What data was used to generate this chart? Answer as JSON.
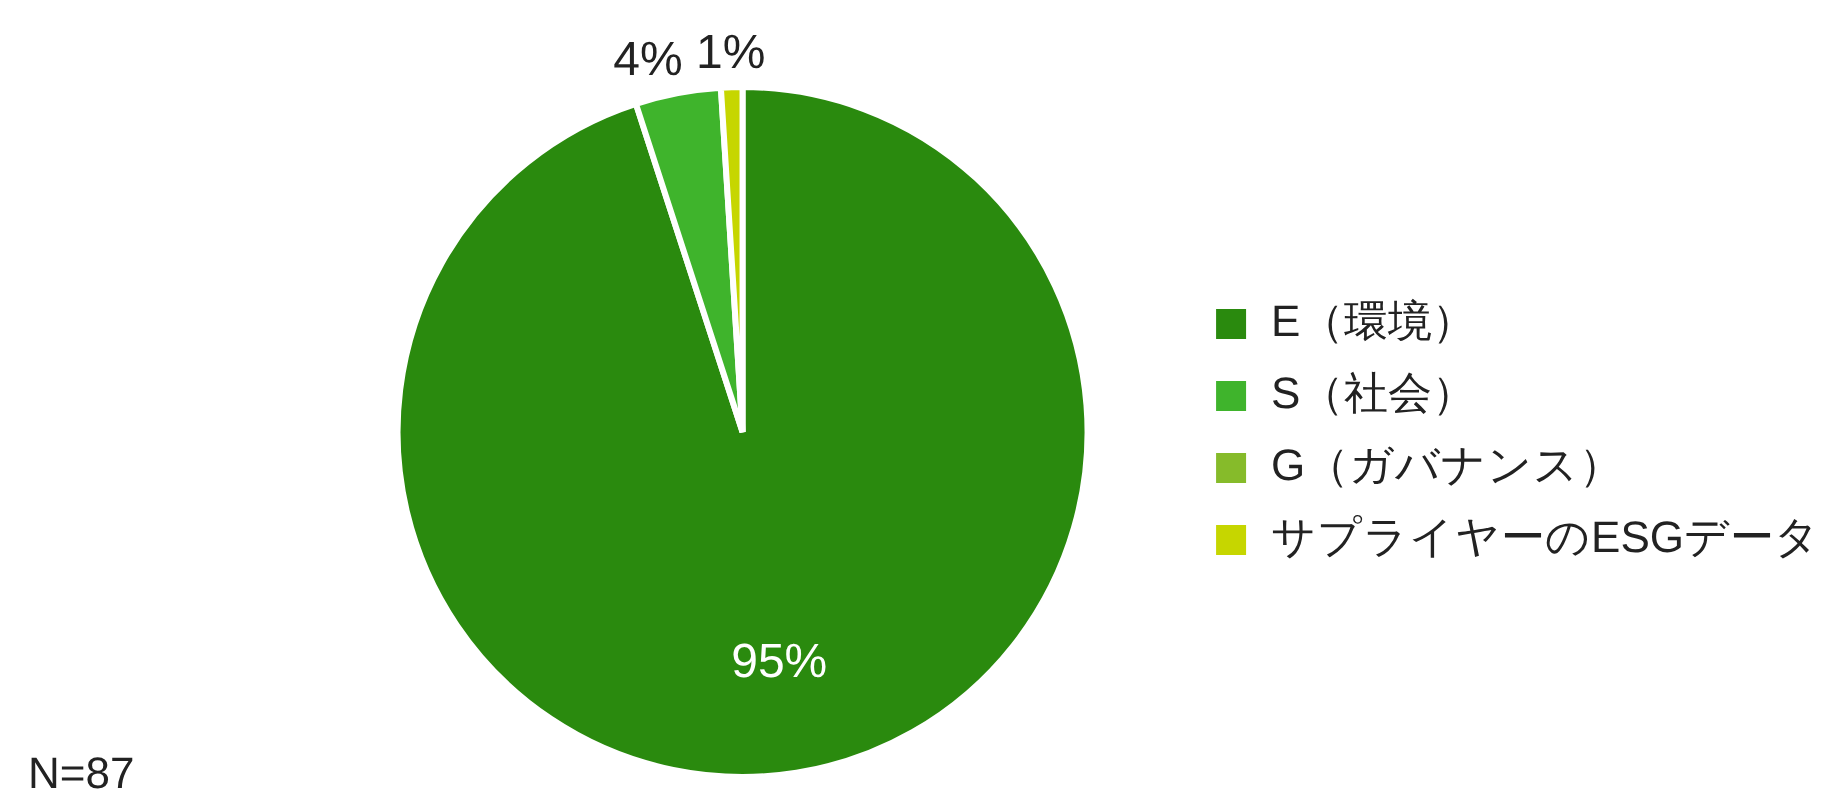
{
  "chart_data": {
    "type": "pie",
    "categories": [
      "E（環境）",
      "S（社会）",
      "G（ガバナンス）",
      "サプライヤーのESGデータ"
    ],
    "values": [
      95,
      4,
      0,
      1
    ],
    "colors": [
      "#2a8a0e",
      "#3fb42c",
      "#86bb2a",
      "#c6d600"
    ],
    "value_labels": [
      "95%",
      "4%",
      null,
      "1%"
    ],
    "legend": "right",
    "annotations": [
      "N=87"
    ]
  }
}
